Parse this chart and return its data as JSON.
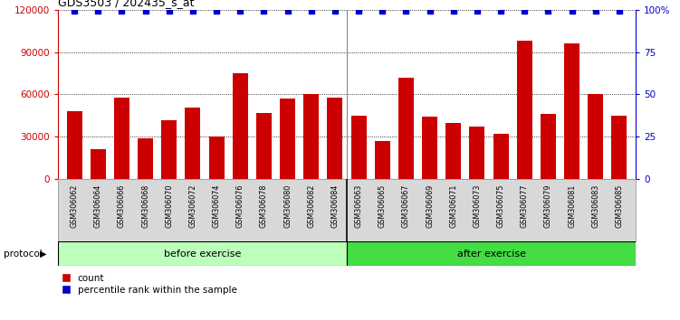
{
  "title": "GDS3503 / 202435_s_at",
  "samples": [
    "GSM306062",
    "GSM306064",
    "GSM306066",
    "GSM306068",
    "GSM306070",
    "GSM306072",
    "GSM306074",
    "GSM306076",
    "GSM306078",
    "GSM306080",
    "GSM306082",
    "GSM306084",
    "GSM306063",
    "GSM306065",
    "GSM306067",
    "GSM306069",
    "GSM306071",
    "GSM306073",
    "GSM306075",
    "GSM306077",
    "GSM306079",
    "GSM306081",
    "GSM306083",
    "GSM306085"
  ],
  "counts": [
    48000,
    21000,
    58000,
    29000,
    42000,
    51000,
    30000,
    75000,
    47000,
    57000,
    60000,
    58000,
    45000,
    27000,
    72000,
    44000,
    40000,
    37000,
    32000,
    98000,
    46000,
    96000,
    60000,
    45000
  ],
  "percentiles": [
    99,
    99,
    99,
    99,
    99,
    99,
    99,
    99,
    99,
    99,
    99,
    99,
    99,
    99,
    99,
    99,
    99,
    99,
    99,
    99,
    99,
    99,
    99,
    99
  ],
  "before_count": 12,
  "after_count": 12,
  "bar_color": "#cc0000",
  "dot_color": "#0000cc",
  "before_color": "#bbffbb",
  "after_color": "#44dd44",
  "ylim": [
    0,
    120000
  ],
  "yticks": [
    0,
    30000,
    60000,
    90000,
    120000
  ],
  "right_yticks": [
    0,
    25,
    50,
    75,
    100
  ],
  "right_yticklabels": [
    "0",
    "25",
    "50",
    "75",
    "100%"
  ],
  "protocol_label": "protocol",
  "before_label": "before exercise",
  "after_label": "after exercise",
  "legend_count_label": "count",
  "legend_pct_label": "percentile rank within the sample"
}
